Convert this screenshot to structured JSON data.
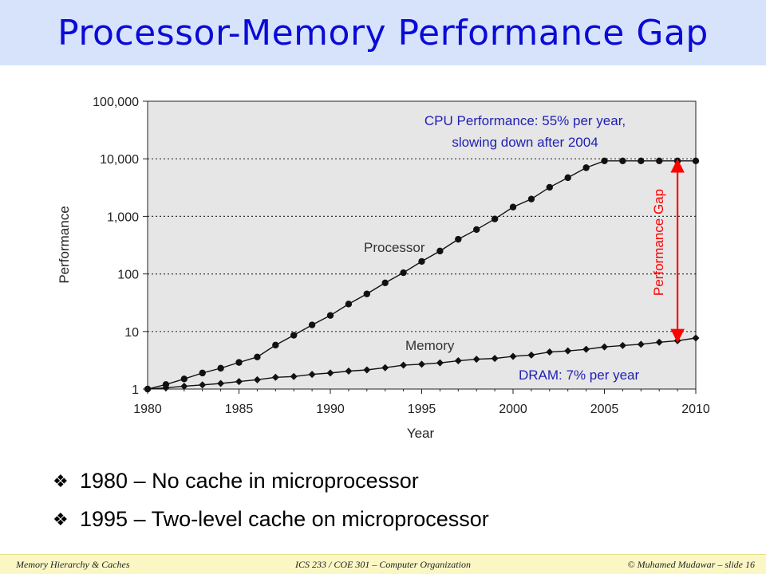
{
  "slide": {
    "title": "Processor-Memory Performance Gap",
    "bullets": [
      "1980 – No cache in microprocessor",
      "1995 – Two-level cache on microprocessor"
    ],
    "footer": {
      "left": "Memory Hierarchy & Caches",
      "center": "ICS 233 / COE 301 – Computer Organization",
      "right": "© Muhamed Mudawar – slide 16"
    }
  },
  "chart_data": {
    "type": "line",
    "xlabel": "Year",
    "ylabel": "Performance",
    "xlim": [
      1980,
      2010
    ],
    "ylim": [
      1,
      100000
    ],
    "yscale": "log",
    "grid": "horizontal dotted",
    "x_ticks": [
      "1980",
      "1985",
      "1990",
      "1995",
      "2000",
      "2005",
      "2010"
    ],
    "y_ticks": [
      "1",
      "10",
      "100",
      "1,000",
      "10,000",
      "100,000"
    ],
    "x": [
      1980,
      1981,
      1982,
      1983,
      1984,
      1985,
      1986,
      1987,
      1988,
      1989,
      1990,
      1991,
      1992,
      1993,
      1994,
      1995,
      1996,
      1997,
      1998,
      1999,
      2000,
      2001,
      2002,
      2003,
      2004,
      2005,
      2006,
      2007,
      2008,
      2009,
      2010
    ],
    "series": [
      {
        "name": "Processor",
        "marker": "circle",
        "values": [
          1,
          1.2,
          1.5,
          1.9,
          2.3,
          2.9,
          3.6,
          5.8,
          8.6,
          13,
          19,
          30,
          45,
          70,
          105,
          165,
          250,
          400,
          590,
          900,
          1450,
          2000,
          3200,
          4700,
          7000,
          9200,
          9200,
          9200,
          9200,
          9200,
          9200
        ]
      },
      {
        "name": "Memory",
        "marker": "diamond",
        "values": [
          1,
          1.05,
          1.12,
          1.18,
          1.25,
          1.35,
          1.45,
          1.6,
          1.65,
          1.8,
          1.9,
          2.05,
          2.15,
          2.35,
          2.6,
          2.7,
          2.85,
          3.1,
          3.3,
          3.4,
          3.7,
          3.9,
          4.4,
          4.6,
          4.9,
          5.4,
          5.7,
          6.0,
          6.5,
          6.9,
          7.7
        ]
      }
    ],
    "annotations": {
      "cpu_line1": "CPU Performance: 55% per year,",
      "cpu_line2": "slowing down after 2004",
      "dram": "DRAM: 7% per year",
      "gap": "Performance Gap",
      "gap_color": "#ff0000",
      "annotation_color": "#1f1fb3"
    }
  }
}
